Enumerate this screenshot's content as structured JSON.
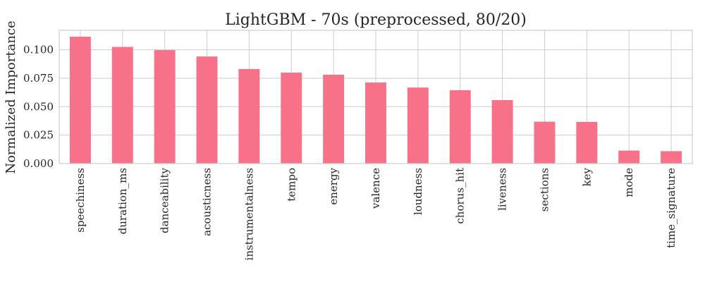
{
  "chart_data": {
    "type": "bar",
    "title": "LightGBM - 70s (preprocessed, 80/20)",
    "xlabel": "",
    "ylabel": "Normalized Importance",
    "categories": [
      "speechiness",
      "duration_ms",
      "danceability",
      "acousticness",
      "instrumentalness",
      "tempo",
      "energy",
      "valence",
      "loudness",
      "chorus_hit",
      "liveness",
      "sections",
      "key",
      "mode",
      "time_signature"
    ],
    "values": [
      0.1115,
      0.1025,
      0.0997,
      0.0941,
      0.0831,
      0.0799,
      0.0781,
      0.0712,
      0.0668,
      0.0645,
      0.0558,
      0.0368,
      0.0366,
      0.0114,
      0.0109
    ],
    "ylim": [
      0,
      0.1171
    ],
    "yticks": [
      0.0,
      0.025,
      0.05,
      0.075,
      0.1
    ],
    "ytick_labels": [
      "0.000",
      "0.025",
      "0.050",
      "0.075",
      "0.100"
    ],
    "bar_color": "#f77189",
    "grid": true,
    "legend": "none"
  }
}
